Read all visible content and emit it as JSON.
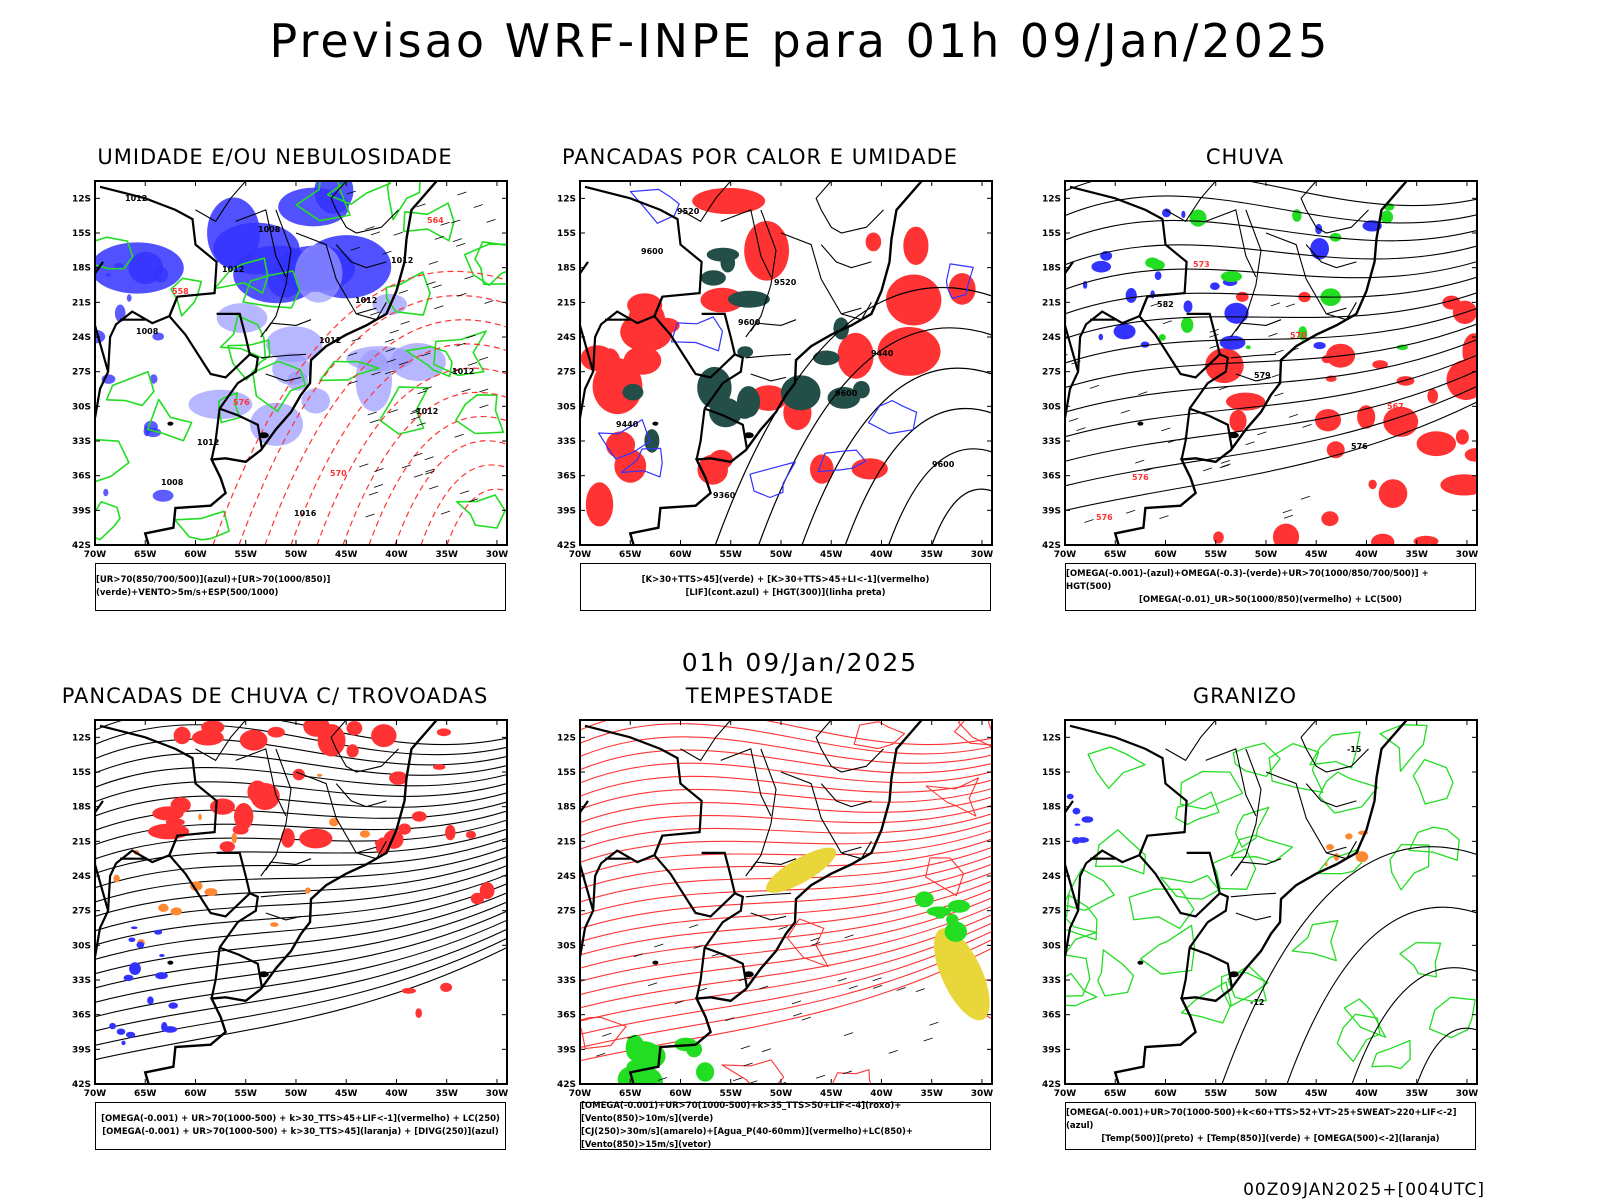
{
  "main_title": "Previsao WRF-INPE  para 01h 09/Jan/2025",
  "mid_title": "01h 09/Jan/2025",
  "footer": "00Z09JAN2025+[004UTC]",
  "axes": {
    "lat": [
      "12S",
      "15S",
      "18S",
      "21S",
      "24S",
      "27S",
      "30S",
      "33S",
      "36S",
      "39S",
      "42S"
    ],
    "lon": [
      "70W",
      "65W",
      "60W",
      "55W",
      "50W",
      "45W",
      "40W",
      "35W",
      "30W"
    ]
  },
  "colors": {
    "blue": "#3333ff",
    "lightblue": "#9999ff",
    "green": "#22dd22",
    "red": "#ff3333",
    "darkgreen": "#244e48",
    "orange": "#ff8833",
    "yellow": "#e8d63a",
    "purple": "#9933cc"
  },
  "panels": [
    {
      "title": "UMIDADE E/OU NEBULOSIDADE",
      "legend": [
        "[UR>70(850/700/500)](azul)+[UR>70(1000/850)](verde)+VENTO>5m/s+ESP(500/1000)"
      ],
      "contour_labels": [
        "1012",
        "1012",
        "1012",
        "1012",
        "1008",
        "1008",
        "1012",
        "1012",
        "1012",
        "1016",
        "1012",
        "1008",
        "576",
        "570",
        "564",
        "558"
      ]
    },
    {
      "title": "PANCADAS POR CALOR E UMIDADE",
      "legend": [
        "[K>30+TTS>45](verde) + [K>30+TTS>45+LI<-1](vermelho)",
        "[LIF](cont.azul) + [HGT(300)](linha preta)"
      ],
      "contour_labels": [
        "9600",
        "9600",
        "9600",
        "9600",
        "9520",
        "9520",
        "9440",
        "9440",
        "9360"
      ]
    },
    {
      "title": "CHUVA",
      "legend": [
        "[OMEGA(-0.001)-(azul)+OMEGA(-0.3)-(verde)+UR>70(1000/850/700/500)] + HGT(500)",
        "[OMEGA(-0.01)_UR>50(1000/850)(vermelho) + LC(500)"
      ],
      "contour_labels": [
        "582",
        "579",
        "576",
        "576",
        "573",
        "570",
        "567",
        "576"
      ]
    },
    {
      "title": "PANCADAS DE CHUVA C/ TROVOADAS",
      "legend": [
        "[OMEGA(-0.001) + UR>70(1000-500) + k>30_TTS>45+LIF<-1](vermelho) + LC(250)",
        "[OMEGA(-0.001) + UR>70(1000-500) + k>30_TTS>45](laranja) + [DIVG(250)](azul)"
      ],
      "contour_labels": []
    },
    {
      "title": "TEMPESTADE",
      "legend": [
        "[OMEGA(-0.001)+UR>70(1000-500)+k>35_TTS>50+LIF<-4](roxo)+[Vento(850)>10m/s](verde)",
        "[CJ(250)>30m/s](amarelo)+[Agua_P(40-60mm)](vermelho)+LC(850)+[Vento(850)>15m/s](vetor)"
      ],
      "contour_labels": []
    },
    {
      "title": "GRANIZO",
      "legend": [
        "[OMEGA(-0.001)+UR>70(1000-500)+k<60+TTS>52+VT>25+SWEAT>220+LIF<-2](azul)",
        "[Temp(500)](preto) + [Temp(850)](verde) + [OMEGA(500)<-2](laranja)"
      ],
      "contour_labels": [
        "-12",
        "-15"
      ]
    }
  ]
}
